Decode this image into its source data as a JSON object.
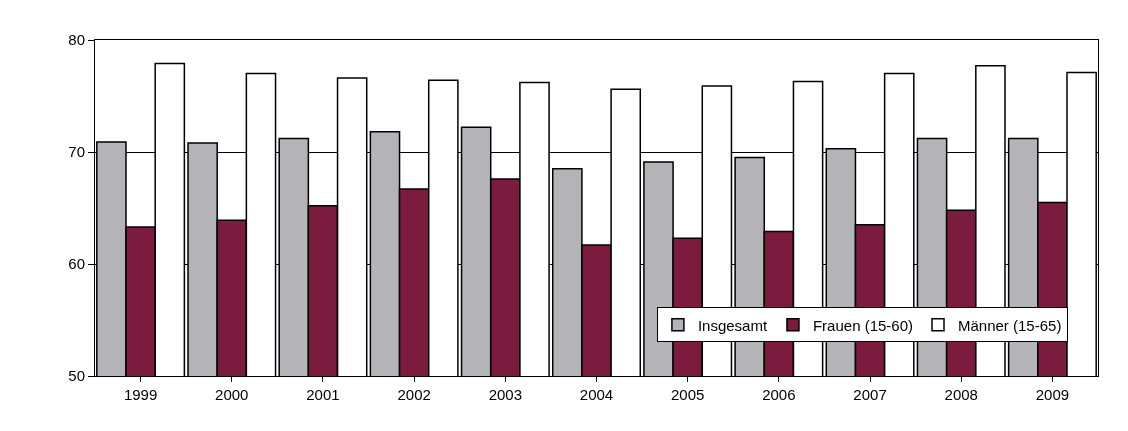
{
  "chart_data": {
    "type": "bar",
    "categories": [
      "1999",
      "2000",
      "2001",
      "2002",
      "2003",
      "2004",
      "2005",
      "2006",
      "2007",
      "2008",
      "2009"
    ],
    "series": [
      {
        "name": "Insgesamt",
        "color": "#b4b4b8",
        "values": [
          70.9,
          70.8,
          71.2,
          71.8,
          72.2,
          68.5,
          69.1,
          69.5,
          70.3,
          71.2,
          71.2
        ]
      },
      {
        "name": "Frauen (15-60)",
        "color": "#7b1c3e",
        "values": [
          63.3,
          63.9,
          65.2,
          66.7,
          67.6,
          61.7,
          62.3,
          62.9,
          63.5,
          64.8,
          65.5
        ]
      },
      {
        "name": "Männer (15-65)",
        "color": "#ffffff",
        "values": [
          77.9,
          77.0,
          76.6,
          76.4,
          76.2,
          75.6,
          75.9,
          76.3,
          77.0,
          77.7,
          77.1
        ]
      }
    ],
    "ylim": [
      50,
      80
    ],
    "yticks": [
      50,
      60,
      70,
      80
    ],
    "grid": "y",
    "legend": "bottom right"
  }
}
